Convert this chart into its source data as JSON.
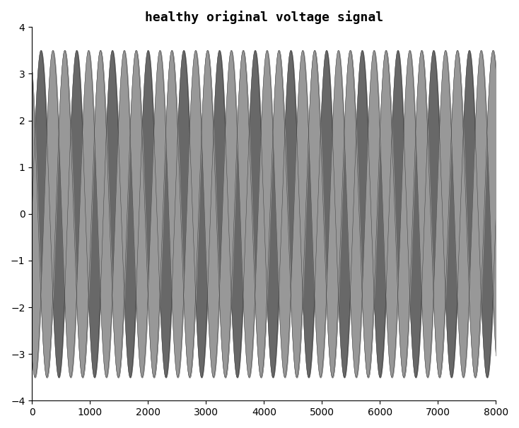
{
  "title": "healthy original voltage signal",
  "title_fontsize": 13,
  "title_fontweight": "bold",
  "n_samples": 8001,
  "amplitude": 3.5,
  "n_cycles": 13,
  "xlim": [
    0,
    8000
  ],
  "ylim": [
    -4,
    4
  ],
  "xticks": [
    0,
    1000,
    2000,
    3000,
    4000,
    5000,
    6000,
    7000,
    8000
  ],
  "yticks": [
    -4,
    -3,
    -2,
    -1,
    0,
    1,
    2,
    3,
    4
  ],
  "phase_offsets_deg": [
    0,
    120,
    240
  ],
  "fill_colors": [
    "#b8b8b8",
    "#686868",
    "#989898"
  ],
  "background_color": "#ffffff",
  "linewidth": 0.3,
  "line_color": "#303030"
}
